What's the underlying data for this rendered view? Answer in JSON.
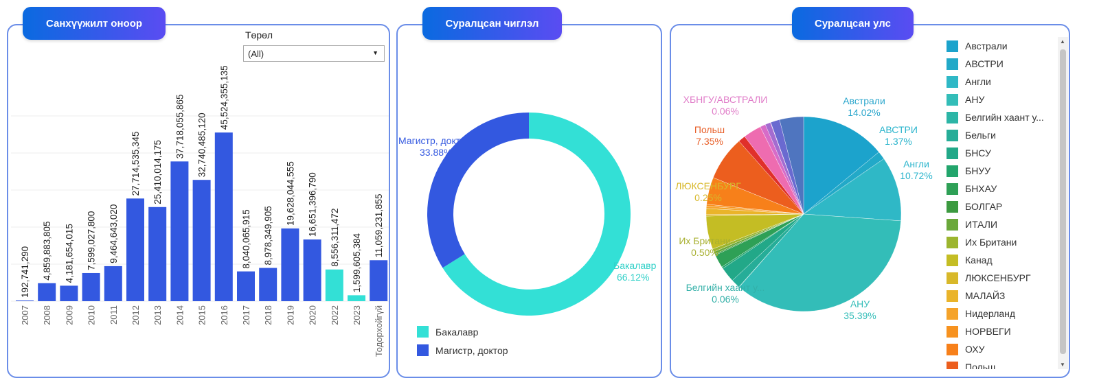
{
  "panels": {
    "funding": {
      "title": "Санхүүжилт оноор",
      "filter_label": "Төрөл",
      "filter_value": "(All)"
    },
    "field": {
      "title": "Суралцсан чиглэл"
    },
    "country": {
      "title": "Суралцсан улс"
    }
  },
  "chart_data": [
    {
      "type": "bar",
      "title": "Санхүүжилт оноор",
      "ylim": [
        0,
        60000000000
      ],
      "grid": true,
      "categories": [
        "2007",
        "2008",
        "2009",
        "2010",
        "2011",
        "2012",
        "2013",
        "2014",
        "2015",
        "2016",
        "2017",
        "2018",
        "2019",
        "2020",
        "2022",
        "2023",
        "Тодорхойгүй"
      ],
      "values": [
        192741290,
        4859883805,
        4181654015,
        7599027800,
        9464643020,
        27714535345,
        25410014175,
        37718055865,
        32740485120,
        45524355135,
        8040065915,
        8978349905,
        19628044555,
        16651396790,
        8556311472,
        1599605384,
        11059231855
      ],
      "labels": [
        "192,741,290",
        "4,859,883,805",
        "4,181,654,015",
        "7,599,027,800",
        "9,464,643,020",
        "27,714,535,345",
        "25,410,014,175",
        "37,718,055,865",
        "32,740,485,120",
        "45,524,355,135",
        "8,040,065,915",
        "8,978,349,905",
        "19,628,044,555",
        "16,651,396,790",
        "8,556,311,472",
        "1,599,605,384",
        "11,059,231,855"
      ],
      "highlight": [
        false,
        false,
        false,
        false,
        false,
        false,
        false,
        false,
        false,
        false,
        false,
        false,
        false,
        false,
        true,
        true,
        false
      ],
      "colors": {
        "bar": "#3358e0",
        "highlight": "#33e0d6"
      }
    },
    {
      "type": "pie",
      "title": "Суралцсан чиглэл",
      "donut": true,
      "slices": [
        {
          "name": "Бакалавр",
          "value": 66.12,
          "label": "66.12%",
          "color": "#33e0d6"
        },
        {
          "name": "Магистр, доктор",
          "value": 33.88,
          "label": "33.88%",
          "color": "#3358e0"
        }
      ]
    },
    {
      "type": "pie",
      "title": "Суралцсан улс",
      "slices": [
        {
          "name": "Австрали",
          "value": 14.02,
          "label": "14.02%",
          "color": "#1ca3cc"
        },
        {
          "name": "АВСТРИ",
          "value": 1.37,
          "label": "1.37%",
          "color": "#22a9c8"
        },
        {
          "name": "Англи",
          "value": 10.72,
          "label": "10.72%",
          "color": "#2fb8c6"
        },
        {
          "name": "АНУ",
          "value": 35.39,
          "label": "35.39%",
          "color": "#33bdb8"
        },
        {
          "name": "Белгийн хаант у...",
          "value": 0.06,
          "label": "0.06%",
          "color": "#2cb5a6"
        },
        {
          "name": "Бельги",
          "value": 1.5,
          "color": "#26ad98"
        },
        {
          "name": "БНСУ",
          "value": 2.5,
          "color": "#22a888"
        },
        {
          "name": "БНУУ",
          "value": 0.3,
          "color": "#22a56c"
        },
        {
          "name": "БНХАУ",
          "value": 2.2,
          "color": "#2ea056"
        },
        {
          "name": "БОЛГАР",
          "value": 0.2,
          "color": "#3c9a40"
        },
        {
          "name": "ИТАЛИ",
          "value": 0.4,
          "color": "#6aa83a"
        },
        {
          "name": "Их Британи",
          "value": 0.5,
          "label": "0.50%",
          "color": "#9cb52e"
        },
        {
          "name": "Канад",
          "value": 5.5,
          "color": "#c4bd24"
        },
        {
          "name": "ЛЮКСЕНБУРГ",
          "value": 0.25,
          "label": "0.25%",
          "color": "#d8b82a"
        },
        {
          "name": "МАЛАЙЗ",
          "value": 1.0,
          "color": "#eab42a"
        },
        {
          "name": "Нидерланд",
          "value": 0.4,
          "color": "#f5a32a"
        },
        {
          "name": "НОРВЕГИ",
          "value": 0.3,
          "color": "#f7921f"
        },
        {
          "name": "ОХУ",
          "value": 4.5,
          "color": "#f7801a"
        },
        {
          "name": "Польш",
          "value": 7.35,
          "label": "7.35%",
          "color": "#ec5e1e"
        },
        {
          "value": 1.2,
          "color": "#e0302a"
        },
        {
          "value": 3.0,
          "color": "#ee6cb0"
        },
        {
          "value": 0.9,
          "color": "#d76cc8"
        },
        {
          "value": 0.9,
          "color": "#a46cd0"
        },
        {
          "name": "ХБНГУ/АВСТРАЛИ",
          "value": 0.06,
          "label": "0.06%",
          "color": "#e487c8"
        },
        {
          "value": 1.5,
          "color": "#6a6ad0"
        },
        {
          "value": 3.98,
          "color": "#4f75bf"
        }
      ]
    }
  ]
}
